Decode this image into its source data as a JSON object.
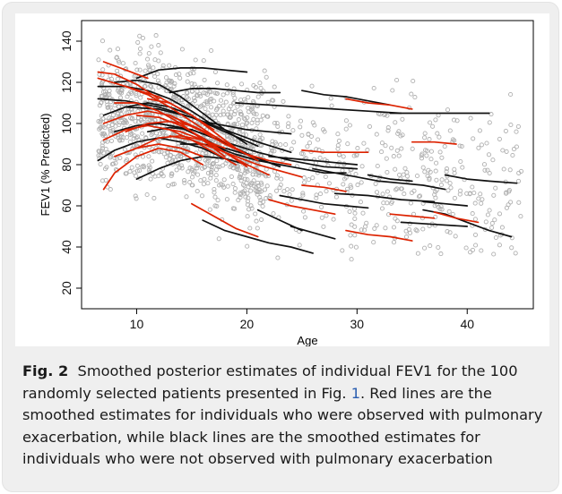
{
  "chart_data": {
    "type": "line",
    "xlabel": "Age",
    "ylabel": "FEV1 (% Predicted)",
    "xlim": [
      5,
      46
    ],
    "ylim": [
      10,
      150
    ],
    "xticks": [
      10,
      20,
      30,
      40
    ],
    "yticks": [
      20,
      40,
      60,
      80,
      100,
      120,
      140
    ],
    "grid": false,
    "colors": {
      "red_series": "#dd2200",
      "black_series": "#111111",
      "points": "#b0b0b0"
    },
    "series": [
      {
        "color": "red",
        "x": [
          6.5,
          9,
          12,
          15,
          17
        ],
        "y": [
          122,
          118,
          113,
          104,
          97
        ]
      },
      {
        "color": "red",
        "x": [
          7,
          9,
          11,
          13,
          15
        ],
        "y": [
          100,
          104,
          106,
          104,
          99
        ]
      },
      {
        "color": "red",
        "x": [
          7,
          8,
          10,
          12,
          14,
          16
        ],
        "y": [
          68,
          76,
          84,
          88,
          86,
          80
        ]
      },
      {
        "color": "red",
        "x": [
          7,
          9,
          11,
          13,
          15,
          17,
          19
        ],
        "y": [
          92,
          97,
          99,
          97,
          92,
          86,
          80
        ]
      },
      {
        "color": "red",
        "x": [
          8,
          10,
          12,
          14,
          16,
          18
        ],
        "y": [
          110,
          110,
          106,
          100,
          92,
          84
        ]
      },
      {
        "color": "red",
        "x": [
          8,
          10,
          12,
          14,
          16
        ],
        "y": [
          84,
          88,
          90,
          88,
          84
        ]
      },
      {
        "color": "red",
        "x": [
          9,
          11,
          13,
          15,
          17,
          19,
          21
        ],
        "y": [
          118,
          114,
          108,
          101,
          94,
          88,
          82
        ]
      },
      {
        "color": "red",
        "x": [
          9,
          11,
          13,
          15,
          17
        ],
        "y": [
          96,
          100,
          101,
          99,
          94
        ]
      },
      {
        "color": "red",
        "x": [
          10,
          12,
          14,
          16,
          18,
          20
        ],
        "y": [
          104,
          103,
          99,
          93,
          86,
          79
        ]
      },
      {
        "color": "red",
        "x": [
          10,
          12,
          14,
          16,
          18
        ],
        "y": [
          88,
          93,
          94,
          92,
          88
        ]
      },
      {
        "color": "red",
        "x": [
          11,
          13,
          15,
          17,
          19,
          21
        ],
        "y": [
          112,
          110,
          104,
          96,
          88,
          82
        ]
      },
      {
        "color": "red",
        "x": [
          12,
          14,
          16,
          18,
          20,
          22
        ],
        "y": [
          98,
          96,
          92,
          86,
          80,
          75
        ]
      },
      {
        "color": "red",
        "x": [
          6.5,
          8,
          10,
          12
        ],
        "y": [
          125,
          124,
          119,
          112
        ]
      },
      {
        "color": "red",
        "x": [
          13,
          15,
          17,
          19,
          21,
          23,
          25
        ],
        "y": [
          94,
          92,
          88,
          84,
          80,
          77,
          74
        ]
      },
      {
        "color": "red",
        "x": [
          14,
          16,
          18,
          20,
          22,
          24
        ],
        "y": [
          101,
          96,
          90,
          85,
          82,
          80
        ]
      },
      {
        "color": "red",
        "x": [
          15,
          17,
          19,
          21
        ],
        "y": [
          61,
          55,
          49,
          45
        ]
      },
      {
        "color": "red",
        "x": [
          22,
          24,
          26,
          28
        ],
        "y": [
          63,
          60,
          58,
          56
        ]
      },
      {
        "color": "red",
        "x": [
          25,
          27,
          29,
          31
        ],
        "y": [
          87,
          86,
          86,
          86
        ]
      },
      {
        "color": "red",
        "x": [
          25,
          27,
          29
        ],
        "y": [
          70,
          69,
          67
        ]
      },
      {
        "color": "red",
        "x": [
          29,
          31,
          33,
          35
        ],
        "y": [
          48,
          46,
          45,
          43
        ]
      },
      {
        "color": "red",
        "x": [
          29,
          31,
          33,
          35
        ],
        "y": [
          112,
          110,
          109,
          107
        ]
      },
      {
        "color": "red",
        "x": [
          35,
          37,
          39
        ],
        "y": [
          91,
          91,
          90
        ]
      },
      {
        "color": "red",
        "x": [
          37,
          39,
          41
        ],
        "y": [
          57,
          54,
          52
        ]
      },
      {
        "color": "red",
        "x": [
          33,
          35,
          37
        ],
        "y": [
          56,
          55,
          54
        ]
      },
      {
        "color": "red",
        "x": [
          7,
          9,
          11
        ],
        "y": [
          130,
          126,
          122
        ]
      },
      {
        "color": "black",
        "x": [
          6.5,
          9,
          11,
          13,
          15,
          17
        ],
        "y": [
          118,
          118,
          116,
          112,
          106,
          99
        ]
      },
      {
        "color": "black",
        "x": [
          6.5,
          8,
          10,
          12,
          14,
          16,
          18
        ],
        "y": [
          82,
          87,
          91,
          93,
          91,
          88,
          83
        ]
      },
      {
        "color": "black",
        "x": [
          6.5,
          9,
          12,
          15,
          18,
          21
        ],
        "y": [
          112,
          111,
          108,
          103,
          96,
          89
        ]
      },
      {
        "color": "black",
        "x": [
          7,
          9,
          11,
          13,
          15
        ],
        "y": [
          104,
          108,
          110,
          108,
          104
        ]
      },
      {
        "color": "black",
        "x": [
          8,
          10,
          12,
          14,
          16,
          18,
          20
        ],
        "y": [
          120,
          121,
          119,
          113,
          105,
          97,
          90
        ]
      },
      {
        "color": "black",
        "x": [
          8,
          10,
          12,
          14,
          16,
          18
        ],
        "y": [
          96,
          99,
          100,
          98,
          93,
          87
        ]
      },
      {
        "color": "black",
        "x": [
          9,
          12,
          15,
          18,
          21,
          24
        ],
        "y": [
          108,
          107,
          103,
          97,
          91,
          86
        ]
      },
      {
        "color": "black",
        "x": [
          10,
          12,
          14,
          16,
          18,
          20
        ],
        "y": [
          122,
          126,
          127,
          127,
          126,
          125
        ]
      },
      {
        "color": "black",
        "x": [
          10,
          12,
          14,
          16,
          18,
          20
        ],
        "y": [
          73,
          78,
          82,
          84,
          83,
          80
        ]
      },
      {
        "color": "black",
        "x": [
          11,
          13,
          15,
          17,
          19,
          21,
          23
        ],
        "y": [
          96,
          98,
          97,
          93,
          88,
          83,
          79
        ]
      },
      {
        "color": "black",
        "x": [
          12,
          15,
          18,
          21,
          24,
          27,
          30
        ],
        "y": [
          100,
          97,
          91,
          86,
          82,
          79,
          78
        ]
      },
      {
        "color": "black",
        "x": [
          13,
          15,
          17,
          19,
          21,
          23
        ],
        "y": [
          115,
          117,
          117,
          116,
          115,
          115
        ]
      },
      {
        "color": "black",
        "x": [
          14,
          16,
          18,
          20,
          22
        ],
        "y": [
          90,
          90,
          88,
          85,
          81
        ]
      },
      {
        "color": "black",
        "x": [
          16,
          18,
          20,
          22,
          24
        ],
        "y": [
          101,
          99,
          97,
          96,
          95
        ]
      },
      {
        "color": "black",
        "x": [
          19,
          22,
          25,
          28,
          31,
          34
        ],
        "y": [
          110,
          109,
          108,
          107,
          106,
          105
        ]
      },
      {
        "color": "black",
        "x": [
          21,
          23,
          25
        ],
        "y": [
          58,
          53,
          48
        ]
      },
      {
        "color": "black",
        "x": [
          17,
          19,
          21,
          23,
          25,
          27,
          29
        ],
        "y": [
          89,
          85,
          82,
          80,
          78,
          76,
          76
        ]
      },
      {
        "color": "black",
        "x": [
          16,
          18,
          20,
          22,
          24,
          26
        ],
        "y": [
          53,
          48,
          45,
          42,
          40,
          37
        ]
      },
      {
        "color": "black",
        "x": [
          25,
          27,
          29,
          31,
          33
        ],
        "y": [
          116,
          114,
          113,
          111,
          109
        ]
      },
      {
        "color": "black",
        "x": [
          22,
          24,
          26,
          28,
          30
        ],
        "y": [
          84,
          83,
          82,
          81,
          80
        ]
      },
      {
        "color": "black",
        "x": [
          23,
          25,
          27,
          29,
          31
        ],
        "y": [
          65,
          63,
          61,
          60,
          59
        ]
      },
      {
        "color": "black",
        "x": [
          26,
          28,
          30,
          32,
          34,
          36,
          38
        ],
        "y": [
          78,
          76,
          74,
          72,
          71,
          70,
          68
        ]
      },
      {
        "color": "black",
        "x": [
          28,
          31,
          34,
          37
        ],
        "y": [
          66,
          65,
          63,
          62
        ]
      },
      {
        "color": "black",
        "x": [
          24,
          26,
          28
        ],
        "y": [
          50,
          47,
          44
        ]
      },
      {
        "color": "black",
        "x": [
          31,
          33,
          35
        ],
        "y": [
          75,
          73,
          72
        ]
      },
      {
        "color": "black",
        "x": [
          33,
          36,
          39,
          42
        ],
        "y": [
          105,
          105,
          105,
          105
        ]
      },
      {
        "color": "black",
        "x": [
          36,
          38,
          40,
          42,
          44
        ],
        "y": [
          58,
          56,
          52,
          48,
          45
        ]
      },
      {
        "color": "black",
        "x": [
          34,
          37,
          40
        ],
        "y": [
          52,
          51,
          50
        ]
      },
      {
        "color": "black",
        "x": [
          38,
          40,
          42,
          44.5
        ],
        "y": [
          75,
          73,
          72,
          71
        ]
      },
      {
        "color": "black",
        "x": [
          36,
          38,
          40
        ],
        "y": [
          62,
          61,
          60
        ]
      }
    ]
  },
  "caption": {
    "fig_label": "Fig. 2",
    "text_1": "Smoothed posterior estimates of individual FEV1 for the 100 randomly selected patients presented in Fig.",
    "ref": "1",
    "text_2": ". Red lines are the smoothed estimates for individuals who were observed with pulmonary exacerbation, while black lines are the smoothed estimates for individuals who were not observed with pulmonary exacerbation"
  }
}
